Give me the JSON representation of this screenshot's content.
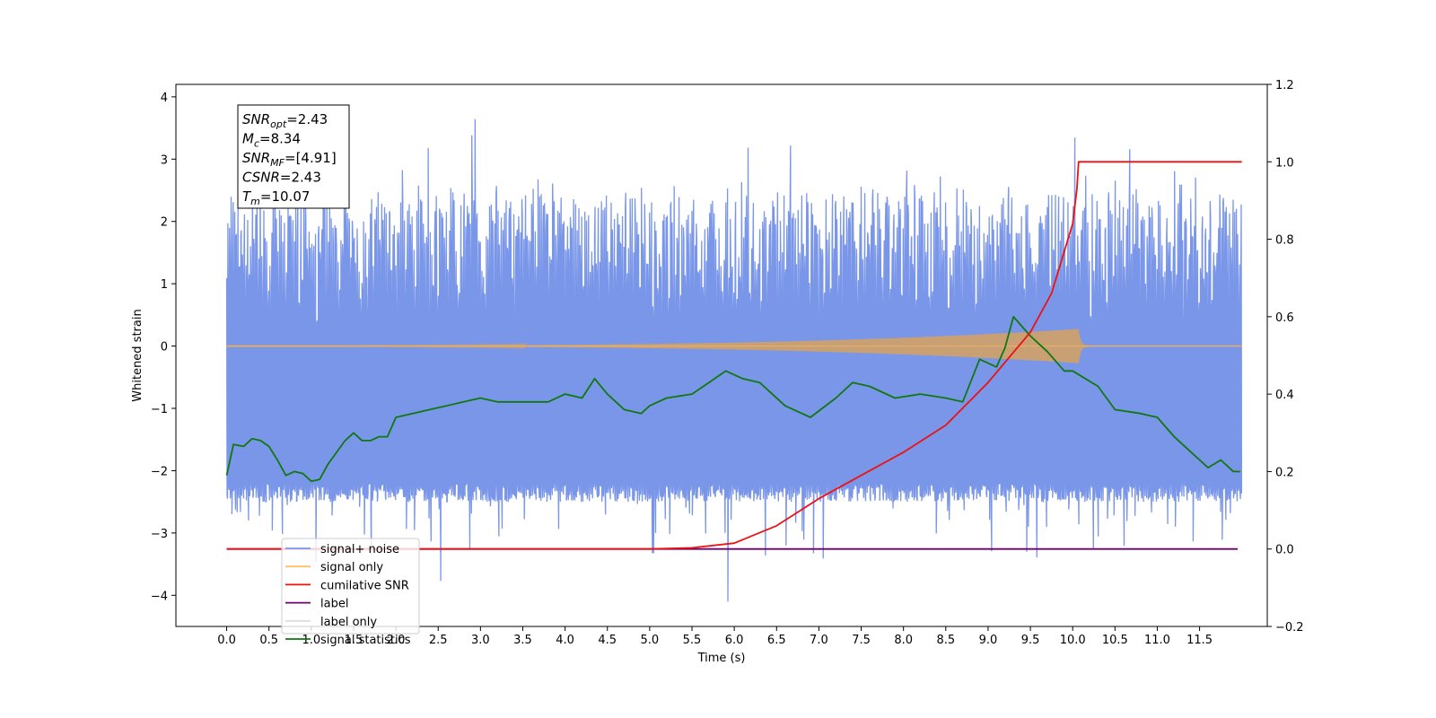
{
  "chart_data": {
    "type": "line",
    "xlabel": "Time (s)",
    "ylabel": "Whitened strain",
    "xlim": [
      -0.6,
      12.3
    ],
    "ylim_left": [
      -4.5,
      4.2
    ],
    "ylim_right": [
      -0.2,
      1.2
    ],
    "x_ticks": [
      0.0,
      0.5,
      1.0,
      1.5,
      2.0,
      2.5,
      3.0,
      3.5,
      4.0,
      4.5,
      5.0,
      5.5,
      6.0,
      6.5,
      7.0,
      7.5,
      8.0,
      8.5,
      9.0,
      9.5,
      10.0,
      10.5,
      11.0,
      11.5
    ],
    "x_tick_labels": [
      "0.0",
      "0.5",
      "1.0",
      "1.5",
      "2.0",
      "2.5",
      "3.0",
      "3.5",
      "4.0",
      "4.5",
      "5.0",
      "5.5",
      "6.0",
      "6.5",
      "7.0",
      "7.5",
      "8.0",
      "8.5",
      "9.0",
      "9.5",
      "10.0",
      "10.5",
      "11.0",
      "11.5"
    ],
    "y_left_ticks": [
      4,
      3,
      2,
      1,
      0,
      -1,
      -2,
      -3,
      -4
    ],
    "y_left_tick_labels": [
      "4",
      "3",
      "2",
      "1",
      "0",
      "−1",
      "−2",
      "−3",
      "−4"
    ],
    "y_right_ticks": [
      1.2,
      1.0,
      0.8,
      0.6,
      0.4,
      0.2,
      0.0,
      -0.2
    ],
    "y_right_tick_labels": [
      "1.2",
      "1.0",
      "0.8",
      "0.6",
      "0.4",
      "0.2",
      "0.0",
      "−0.2"
    ],
    "annotations": [
      {
        "main": "SNR",
        "sub": "opt",
        "rest": "=2.43"
      },
      {
        "main": "M",
        "sub": "c",
        "rest": "=8.34"
      },
      {
        "main": "SNR",
        "sub": "MF",
        "rest": "=[4.91]"
      },
      {
        "main": "CSNR",
        "sub": "",
        "rest": "=2.43"
      },
      {
        "main": "T",
        "sub": "m",
        "rest": "=10.07"
      }
    ],
    "legend_position": "lower-left",
    "series": [
      {
        "name": "signal+ noise",
        "color": "#7a96e8",
        "axis": "left",
        "style": "noise-band",
        "x_range": [
          0.0,
          12.0
        ],
        "band_low": -2.2,
        "band_high": 2.3,
        "peak_high": 3.8,
        "peak_low": -4.1
      },
      {
        "name": "signal only",
        "color": "#ffbf66",
        "axis": "left",
        "style": "chirp",
        "x_range": [
          0.0,
          12.0
        ],
        "merger_time": 10.07,
        "peak_amplitude": 0.27
      },
      {
        "name": "cumilative SNR",
        "color": "#ee1111",
        "axis": "right",
        "style": "line",
        "x": [
          0.0,
          5.0,
          5.5,
          6.0,
          6.5,
          7.0,
          7.5,
          8.0,
          8.5,
          9.0,
          9.5,
          9.75,
          10.0,
          10.05,
          10.07,
          10.5,
          11.0,
          11.5,
          12.0
        ],
        "values": [
          0.0,
          0.0,
          0.003,
          0.015,
          0.06,
          0.13,
          0.19,
          0.25,
          0.32,
          0.43,
          0.56,
          0.66,
          0.84,
          0.93,
          1.0,
          1.0,
          1.0,
          1.0,
          1.0
        ]
      },
      {
        "name": "label",
        "color": "#6d006d",
        "axis": "right",
        "style": "line",
        "x": [
          0.0,
          11.95
        ],
        "values": [
          0.0,
          0.0
        ]
      },
      {
        "name": "label only",
        "color": "#c8c8c8",
        "axis": "right",
        "style": "line",
        "x": [],
        "values": []
      },
      {
        "name": "signal statistics",
        "color": "#117711",
        "axis": "right",
        "style": "line",
        "x": [
          0.0,
          0.08,
          0.2,
          0.3,
          0.4,
          0.5,
          0.6,
          0.7,
          0.8,
          0.9,
          1.0,
          1.1,
          1.2,
          1.3,
          1.4,
          1.5,
          1.6,
          1.7,
          1.8,
          1.9,
          2.0,
          2.2,
          2.4,
          2.6,
          2.8,
          3.0,
          3.2,
          3.5,
          3.8,
          4.0,
          4.2,
          4.35,
          4.5,
          4.7,
          4.9,
          5.0,
          5.2,
          5.5,
          5.7,
          5.9,
          6.1,
          6.3,
          6.6,
          6.9,
          7.2,
          7.4,
          7.6,
          7.9,
          8.2,
          8.5,
          8.7,
          8.9,
          9.1,
          9.2,
          9.3,
          9.5,
          9.7,
          9.9,
          10.0,
          10.3,
          10.5,
          10.8,
          11.0,
          11.2,
          11.4,
          11.6,
          11.75,
          11.9,
          11.98
        ],
        "values": [
          0.19,
          0.27,
          0.265,
          0.285,
          0.28,
          0.265,
          0.23,
          0.19,
          0.2,
          0.195,
          0.175,
          0.18,
          0.22,
          0.25,
          0.28,
          0.3,
          0.28,
          0.28,
          0.29,
          0.29,
          0.34,
          0.35,
          0.36,
          0.37,
          0.38,
          0.39,
          0.38,
          0.38,
          0.38,
          0.4,
          0.39,
          0.44,
          0.4,
          0.36,
          0.35,
          0.37,
          0.39,
          0.4,
          0.43,
          0.46,
          0.44,
          0.43,
          0.37,
          0.34,
          0.39,
          0.43,
          0.42,
          0.39,
          0.4,
          0.39,
          0.38,
          0.49,
          0.47,
          0.52,
          0.6,
          0.55,
          0.51,
          0.46,
          0.46,
          0.42,
          0.36,
          0.35,
          0.34,
          0.29,
          0.25,
          0.21,
          0.23,
          0.2,
          0.2
        ]
      }
    ]
  }
}
